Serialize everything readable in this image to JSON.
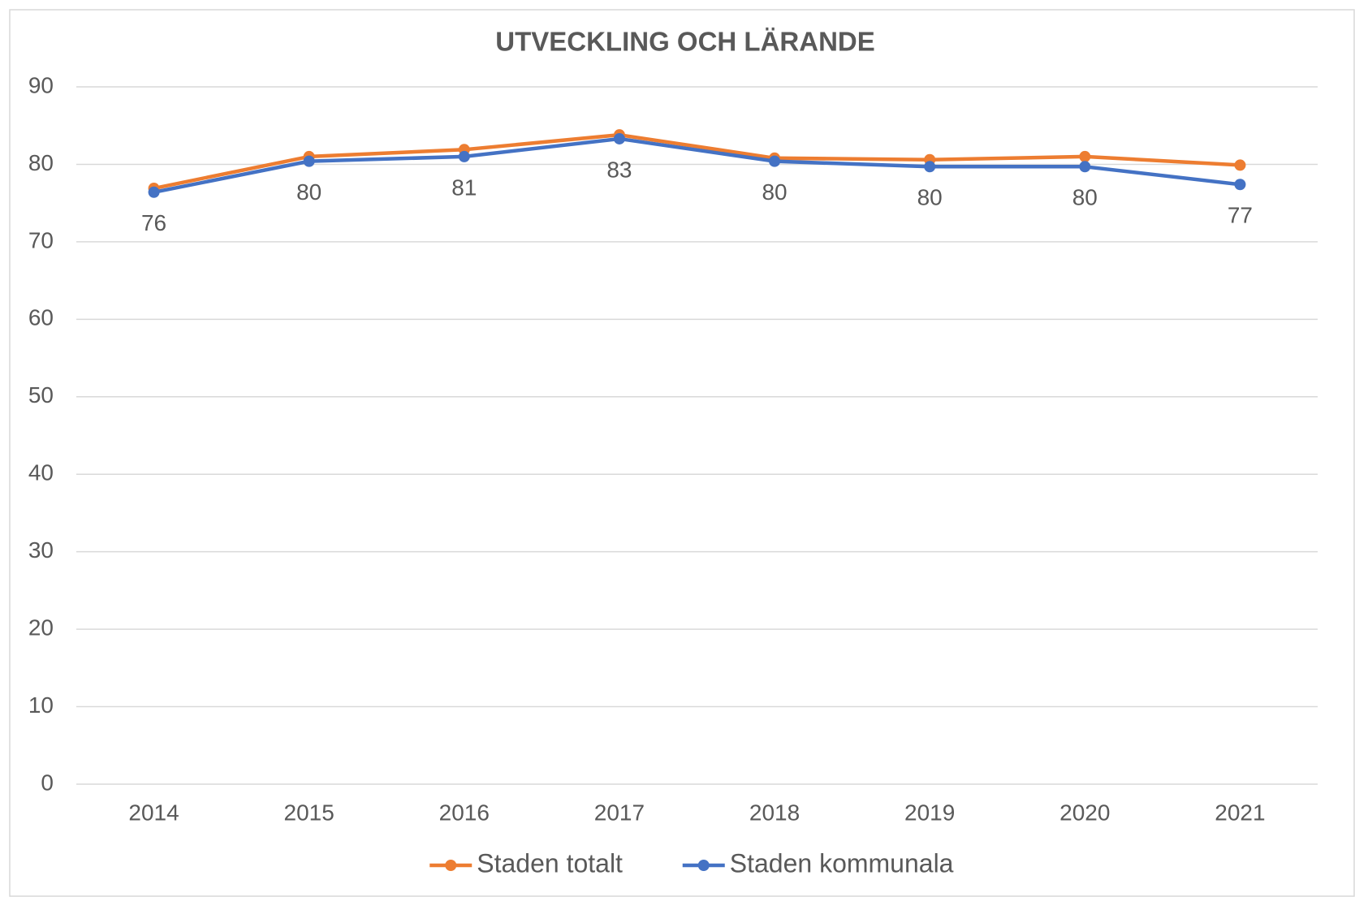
{
  "chart_data": {
    "type": "line",
    "title": "UTVECKLING OCH LÄRANDE",
    "categories": [
      "2014",
      "2015",
      "2016",
      "2017",
      "2018",
      "2019",
      "2020",
      "2021"
    ],
    "series": [
      {
        "name": "Staden totalt",
        "color": "#ed7d31",
        "values": [
          76.9,
          81.0,
          81.9,
          83.8,
          80.8,
          80.6,
          81.0,
          79.9
        ]
      },
      {
        "name": "Staden kommunala",
        "color": "#4472c4",
        "values": [
          76.4,
          80.4,
          81.0,
          83.3,
          80.4,
          79.7,
          79.7,
          77.4
        ],
        "value_labels": [
          "76",
          "80",
          "81",
          "83",
          "80",
          "80",
          "80",
          "77"
        ]
      }
    ],
    "ylim": [
      0,
      90
    ],
    "yticks": [
      0,
      10,
      20,
      30,
      40,
      50,
      60,
      70,
      80,
      90
    ],
    "grid": true,
    "legend": "bottom"
  }
}
